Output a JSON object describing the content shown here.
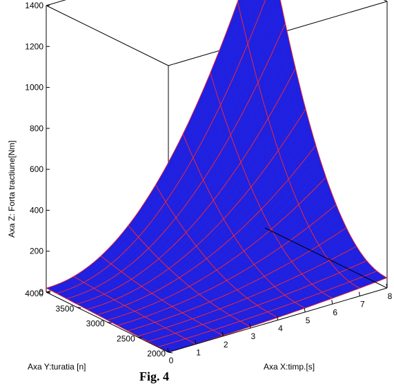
{
  "chart_data": {
    "type": "surface3d",
    "caption": "Fig. 4",
    "xlabel": "Axa X:timp.[s]",
    "ylabel": "Axa Y:turatia [n]",
    "zlabel": "Axa Z: Forta tractiune[Nm]",
    "xlim": [
      0,
      8
    ],
    "ylim": [
      2000,
      4000
    ],
    "zlim": [
      0,
      1400
    ],
    "x_ticks": [
      "0",
      "1",
      "2",
      "3",
      "4",
      "5",
      "6",
      "7",
      "8"
    ],
    "y_ticks": [
      "2000",
      "2500",
      "3000",
      "3500",
      "4000"
    ],
    "z_ticks": [
      "0",
      "200",
      "400",
      "600",
      "800",
      "1000",
      "1200",
      "1400"
    ],
    "surface_color": "#2020e0",
    "mesh_color": "#ff2a2a",
    "corner_values": [
      {
        "x": 0,
        "y": 2000,
        "z": 0
      },
      {
        "x": 8,
        "y": 2000,
        "z": 50
      },
      {
        "x": 0,
        "y": 4000,
        "z": 20
      },
      {
        "x": 8,
        "y": 4000,
        "z": 1500
      }
    ],
    "grid": false,
    "box": true
  }
}
